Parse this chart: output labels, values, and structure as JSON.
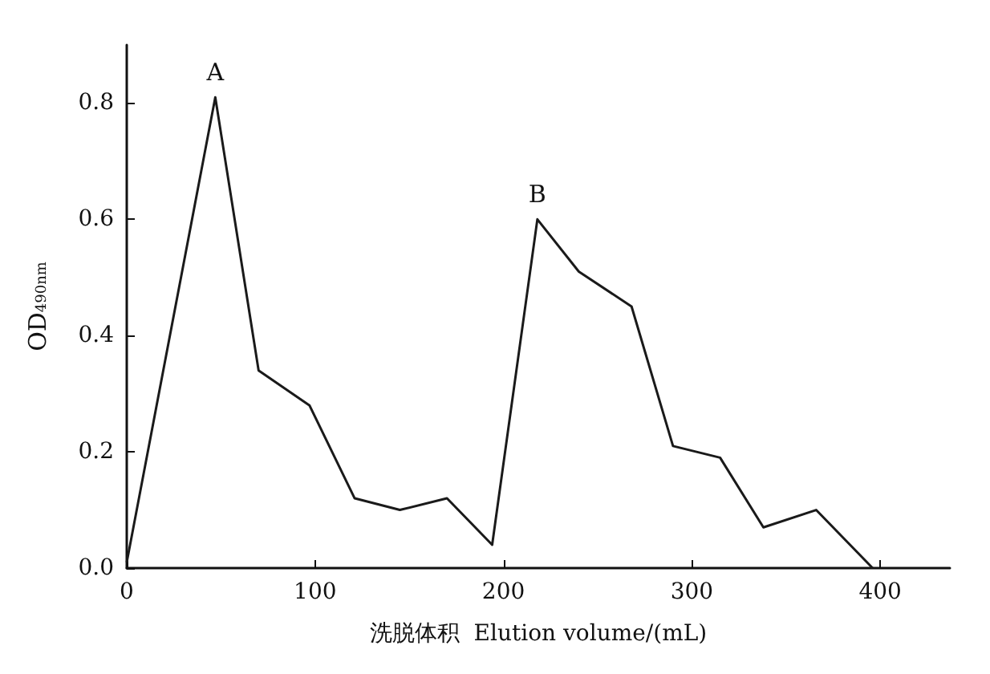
{
  "chart_data": {
    "type": "line",
    "xlabel": "洗脱体积  Elution volume/(mL)",
    "ylabel": "OD$_{490nm}$",
    "x": [
      0,
      47,
      70,
      97,
      121,
      145,
      170,
      194,
      218,
      240,
      268,
      290,
      315,
      338,
      366,
      396
    ],
    "series": [
      {
        "color": "#1a1a1a",
        "values": [
          0.01,
          0.81,
          0.34,
          0.28,
          0.12,
          0.1,
          0.12,
          0.04,
          0.6,
          0.51,
          0.45,
          0.21,
          0.19,
          0.07,
          0.1,
          0.0
        ]
      }
    ],
    "xlim": [
      0,
      437
    ],
    "xticks": [
      0,
      100,
      200,
      300,
      400
    ],
    "ylim": [
      0,
      0.9
    ],
    "yticks": [
      {
        "value": 0,
        "label": "0.0"
      },
      {
        "value": 0.2,
        "label": "0.2"
      },
      {
        "value": 0.4,
        "label": "0.4"
      },
      {
        "value": 0.6,
        "label": "0.6"
      },
      {
        "value": 0.8,
        "label": "0.8"
      }
    ],
    "annotations": [
      {
        "text": "A",
        "x": 47,
        "y": 0.81
      },
      {
        "text": "B",
        "x": 218,
        "y": 0.6
      }
    ],
    "grid": false,
    "marker": "none",
    "line_style": "solid"
  }
}
